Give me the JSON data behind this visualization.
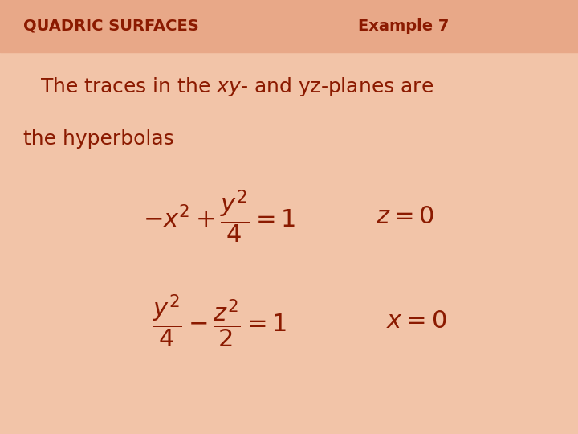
{
  "bg_color_top": "#f5d5c8",
  "bg_color_bottom": "#f0c8b8",
  "header_bg_color": "#e8b8a0",
  "header_text_color": "#8B1A00",
  "text_color": "#8B1A00",
  "header_left": "QUADRIC SURFACES",
  "header_right": "Example 7",
  "line1": "The traces in the \\textit{xy}- and yz-planes are",
  "line2": "the hyperbolas",
  "eq1": "$-x^2 + \\dfrac{y^2}{4} = 1$",
  "eq1_cond": "$z = 0$",
  "eq2": "$\\dfrac{y^2}{4} - \\dfrac{z^2}{2} = 1$",
  "eq2_cond": "$x = 0$",
  "figsize": [
    7.2,
    5.4
  ],
  "dpi": 100
}
